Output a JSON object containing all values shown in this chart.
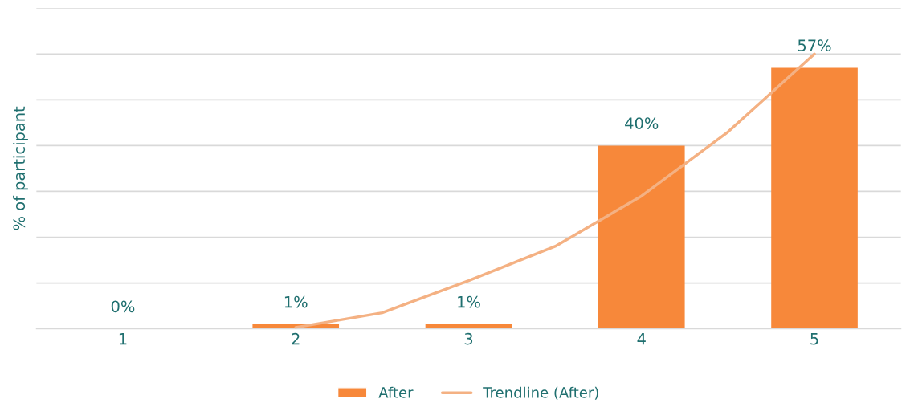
{
  "chart_data": {
    "type": "bar",
    "ylabel": "% of participant",
    "x": [
      1,
      2,
      3,
      4,
      5
    ],
    "xlim": [
      0.5,
      5.5
    ],
    "xticks": [
      1,
      2,
      3,
      4,
      5
    ],
    "ylim": [
      0,
      70
    ],
    "yticks": [
      {
        "value": 0,
        "label": null
      },
      {
        "value": 10,
        "label": null
      },
      {
        "value": 20,
        "label": null
      },
      {
        "value": 30,
        "label": null
      },
      {
        "value": 40,
        "label": null
      },
      {
        "value": 50,
        "label": null
      },
      {
        "value": 60,
        "label": null
      },
      {
        "value": 70,
        "label": null
      }
    ],
    "grid": "y",
    "legend": "bottom",
    "series": [
      {
        "name": "After",
        "color": "#f7883a",
        "values": [
          0,
          1,
          1,
          40,
          57
        ],
        "value_labels": [
          "0%",
          "1%",
          "1%",
          "40%",
          "57%"
        ]
      },
      {
        "name": "Trendline (After)",
        "type": "line",
        "color": "#f4b183",
        "x": [
          2,
          2.5,
          3,
          3.5,
          4,
          4.5,
          5
        ],
        "values": [
          0.3,
          3.5,
          10.5,
          18,
          29,
          43,
          60
        ]
      }
    ]
  }
}
